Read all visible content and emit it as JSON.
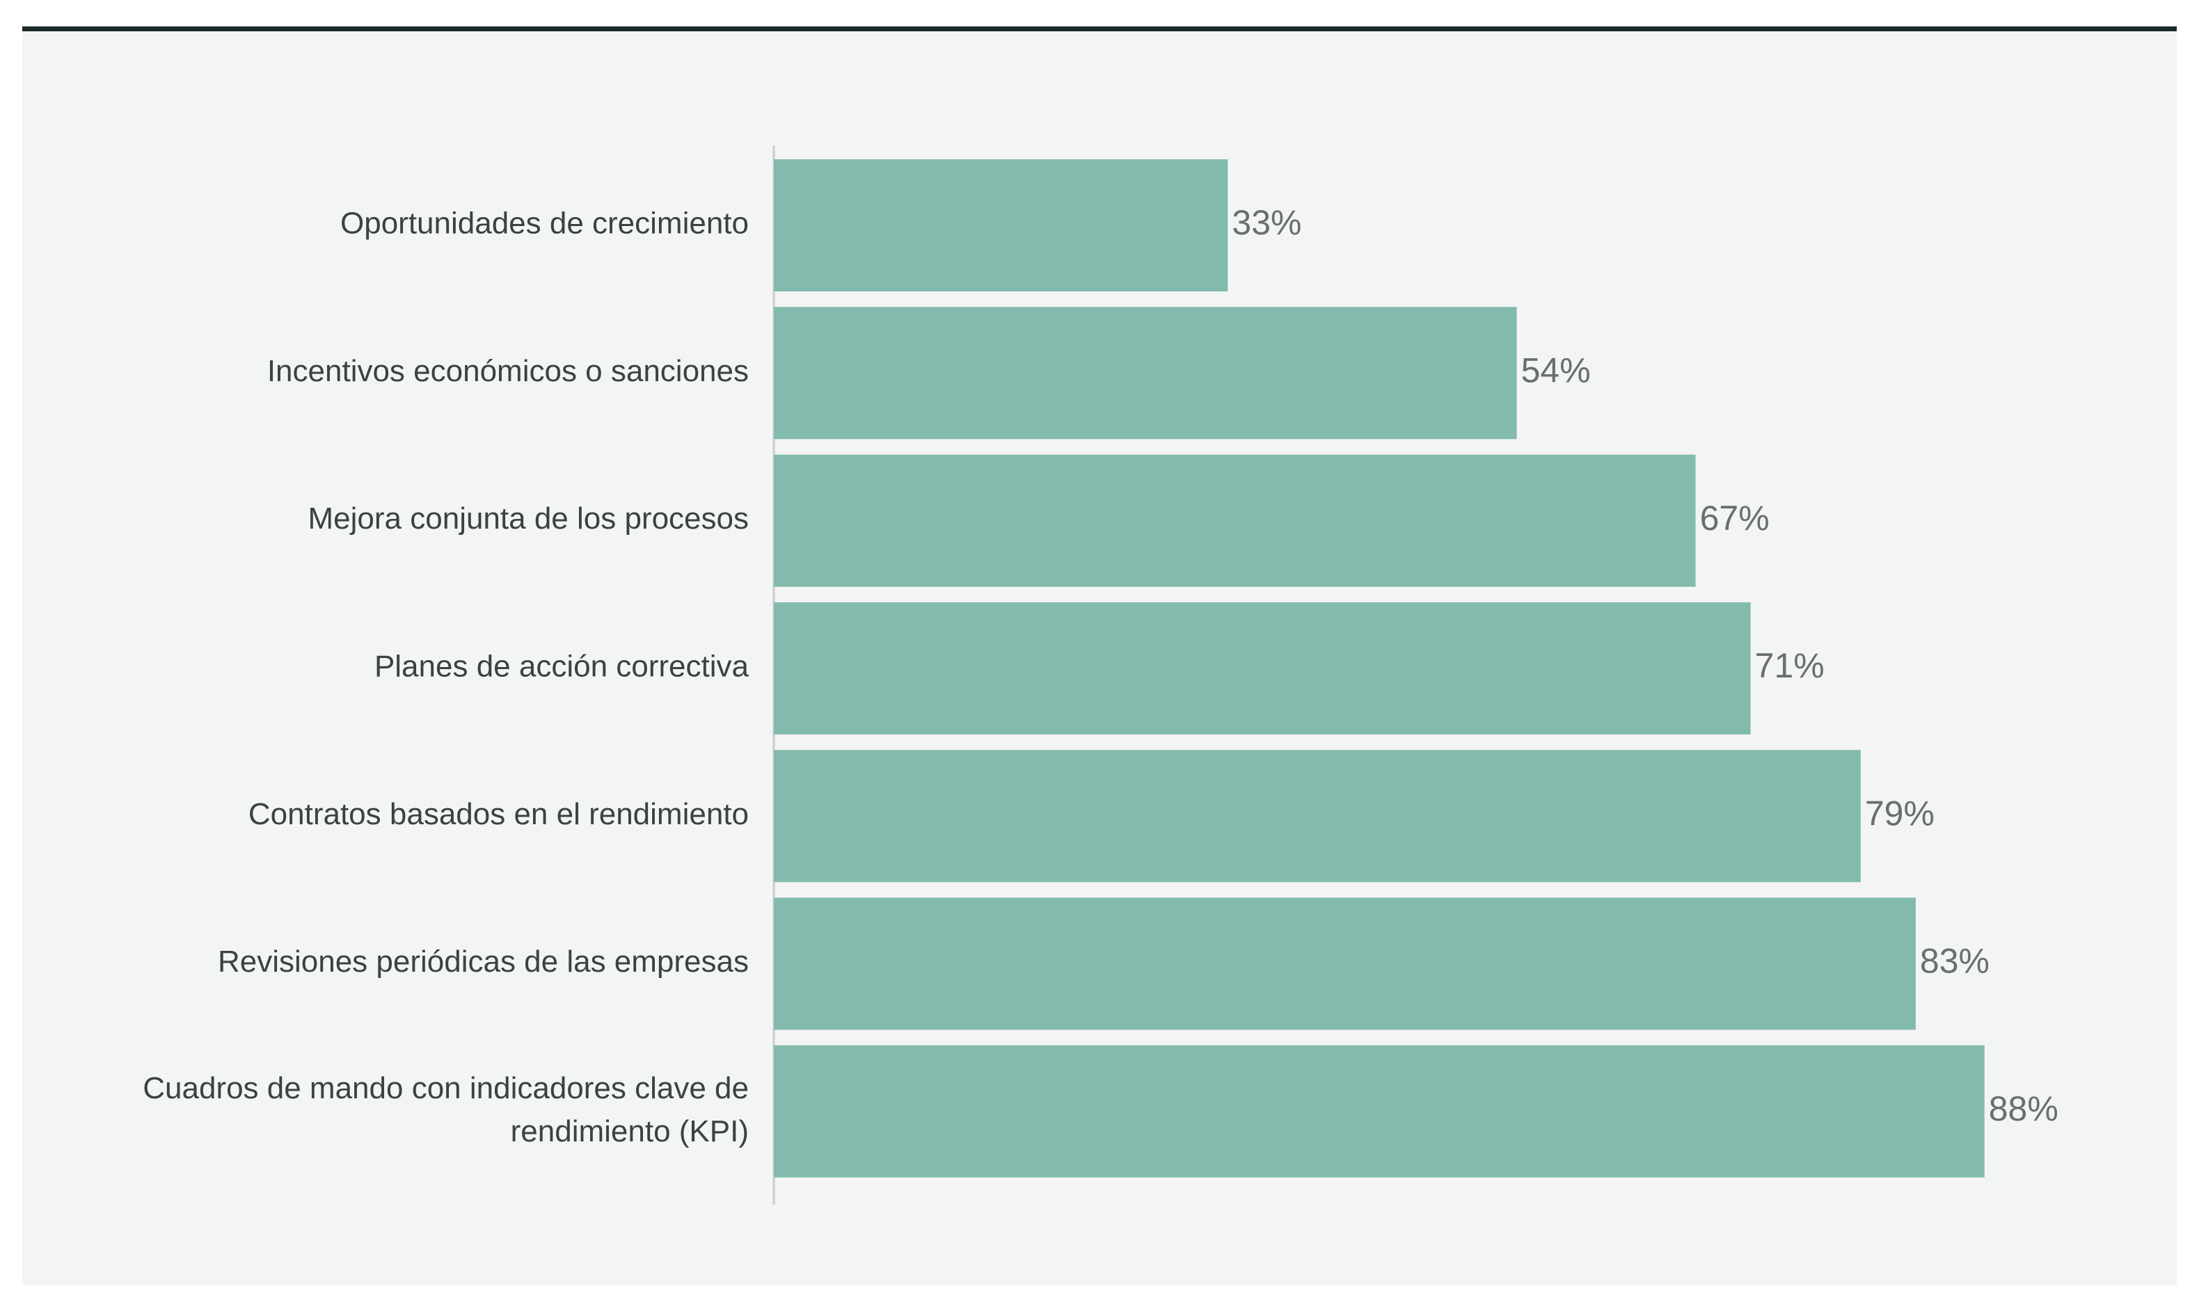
{
  "chart_data": {
    "type": "bar",
    "orientation": "horizontal",
    "categories": [
      "Oportunidades de crecimiento",
      "Incentivos económicos o sanciones",
      "Mejora conjunta de los procesos",
      "Planes de acción correctiva",
      "Contratos basados en el rendimiento",
      "Revisiones periódicas de las empresas",
      "Cuadros de mando con indicadores clave de rendimiento (KPI)"
    ],
    "values": [
      33,
      54,
      67,
      71,
      79,
      83,
      88
    ],
    "value_labels": [
      "33%",
      "54%",
      "67%",
      "71%",
      "79%",
      "83%",
      "88%"
    ],
    "color": "#82bbad",
    "xlim": [
      0,
      100
    ],
    "grid": false
  }
}
